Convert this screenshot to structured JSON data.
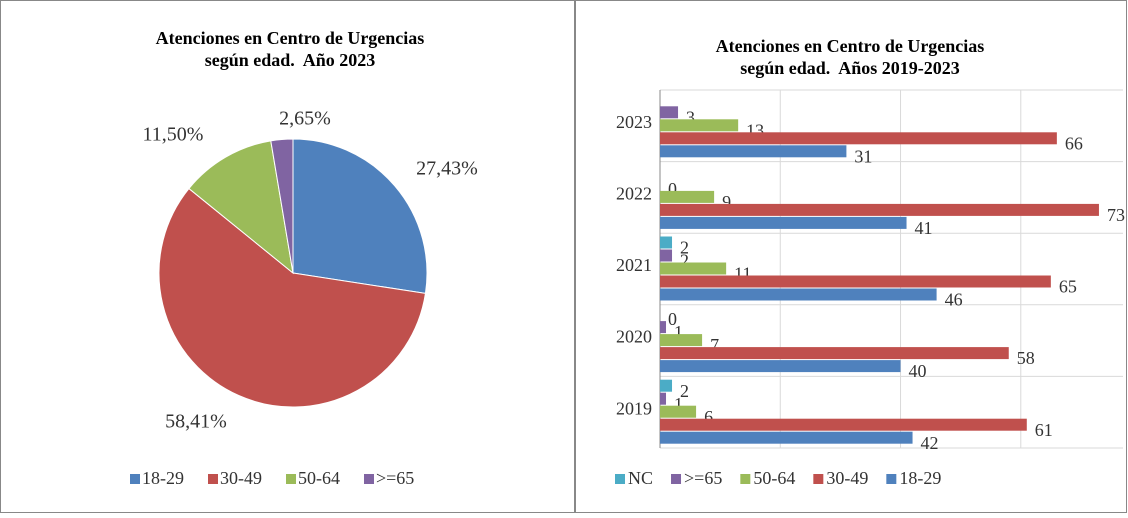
{
  "chart_data": [
    {
      "type": "pie",
      "title": "Atenciones en Centro de Urgencias según edad.  Año 2023",
      "categories": [
        "18-29",
        "30-49",
        "50-64",
        ">=65"
      ],
      "values": [
        27.43,
        58.41,
        11.5,
        2.65
      ],
      "value_labels": [
        "27,43%",
        "58,41%",
        "11,50%",
        "2,65%"
      ],
      "colors": [
        "#4f81bd",
        "#c0504d",
        "#9bbb59",
        "#8064a2"
      ],
      "legend": "bottom"
    },
    {
      "type": "hbar",
      "title": "Atenciones en Centro de Urgencias según edad.  Años 2019-2023",
      "categories": [
        "2023",
        "2022",
        "2021",
        "2020",
        "2019"
      ],
      "series": [
        {
          "name": "NC",
          "color": "#4bacc6",
          "values": [
            null,
            null,
            2,
            0,
            2
          ]
        },
        {
          "name": ">=65",
          "color": "#8064a2",
          "values": [
            3,
            0,
            2,
            1,
            1
          ]
        },
        {
          "name": "50-64",
          "color": "#9bbb59",
          "values": [
            13,
            9,
            11,
            7,
            6
          ]
        },
        {
          "name": "30-49",
          "color": "#c0504d",
          "values": [
            66,
            73,
            65,
            58,
            61
          ]
        },
        {
          "name": "18-29",
          "color": "#4f81bd",
          "values": [
            31,
            41,
            46,
            40,
            42
          ]
        }
      ],
      "xlim": [
        0,
        77
      ],
      "xticks": [
        0,
        20,
        40,
        60
      ],
      "grid": true,
      "legend": "bottom"
    }
  ]
}
